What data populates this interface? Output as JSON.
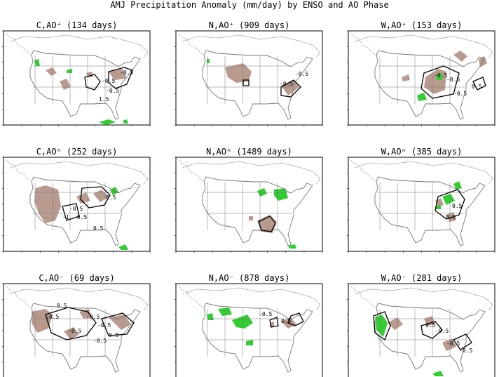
{
  "figure": {
    "title": "AMJ Precipitation Anomaly (mm/day) by ENSO and AO Phase"
  },
  "colors": {
    "positive_anomaly": "#33cc33",
    "negative_anomaly": "#b99a8e",
    "map_lines": "#777777",
    "contour": "#000000"
  },
  "chart_data": {
    "type": "heatmap",
    "description_of_grid": "3x3 panel grid of precipitation anomaly maps over the contiguous United States",
    "legend": {
      "positive_fill": "green",
      "negative_fill": "brown"
    },
    "panels": [
      {
        "title": "C,AO⁺ (134 days)",
        "enso": "C",
        "ao": "+",
        "days": 134,
        "contour_labels": [
          "-0.5",
          "-0.5",
          "-0.5",
          "1.5"
        ]
      },
      {
        "title": "N,AO⁺ (909 days)",
        "enso": "N",
        "ao": "+",
        "days": 909,
        "contour_labels": [
          "-0.5",
          "-0.5"
        ]
      },
      {
        "title": "W,AO⁺ (153 days)",
        "enso": "W",
        "ao": "+",
        "days": 153,
        "contour_labels": [
          "-0.5",
          "-0.5",
          "-0.5",
          "0.5"
        ]
      },
      {
        "title": "C,AOⁿ (252 days)",
        "enso": "C",
        "ao": "n",
        "days": 252,
        "contour_labels": [
          "0.5",
          "-0.5",
          "-1",
          "-0.5",
          "0.5"
        ]
      },
      {
        "title": "N,AOⁿ (1489 days)",
        "enso": "N",
        "ao": "n",
        "days": 1489,
        "contour_labels": []
      },
      {
        "title": "W,AOⁿ (385 days)",
        "enso": "W",
        "ao": "n",
        "days": 385,
        "contour_labels": [
          "0.5",
          "-0.5"
        ]
      },
      {
        "title": "C,AO⁻ (69 days)",
        "enso": "C",
        "ao": "-",
        "days": 69,
        "contour_labels": [
          "0.5",
          "-0.5",
          "-0.5",
          "-0.5",
          "-0.5",
          "0.5",
          "-0.5"
        ]
      },
      {
        "title": "N,AO⁻ (878 days)",
        "enso": "N",
        "ao": "-",
        "days": 878,
        "contour_labels": [
          "0.5",
          "-0.5"
        ]
      },
      {
        "title": "W,AO⁻ (281 days)",
        "enso": "W",
        "ao": "-",
        "days": 281,
        "contour_labels": [
          "0.5",
          "-0.5",
          "-0.5",
          "-0.5"
        ]
      }
    ]
  }
}
